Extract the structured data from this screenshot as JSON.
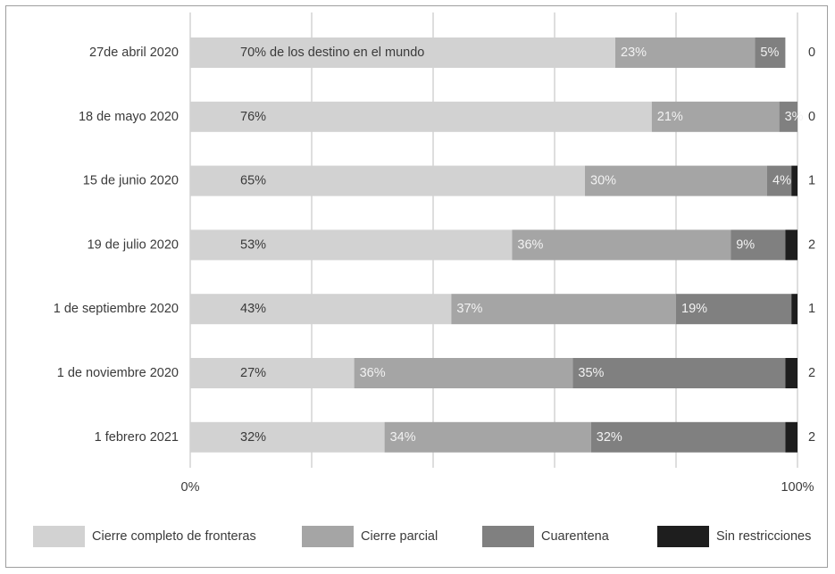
{
  "chart_data": {
    "type": "bar",
    "orientation": "horizontal",
    "stacked": true,
    "categories": [
      "27de abril 2020",
      "18 de mayo 2020",
      "15 de junio 2020",
      "19 de julio 2020",
      "1 de septiembre 2020",
      "1 de noviembre 2020",
      "1 febrero 2021"
    ],
    "series": [
      {
        "name": "Cierre completo de fronteras",
        "color": "#d2d2d2",
        "text_color": "#3a3a3a",
        "values": [
          70,
          76,
          65,
          53,
          43,
          27,
          32
        ],
        "labels": [
          "70% de los destino en el mundo",
          "76%",
          "65%",
          "53%",
          "43%",
          "27%",
          "32%"
        ]
      },
      {
        "name": "Cierre parcial",
        "color": "#a5a5a5",
        "text_color": "#f2f2f2",
        "values": [
          23,
          21,
          30,
          36,
          37,
          36,
          34
        ],
        "labels": [
          "23%",
          "21%",
          "30%",
          "36%",
          "37%",
          "36%",
          "34%"
        ]
      },
      {
        "name": "Cuarentena",
        "color": "#808080",
        "text_color": "#f2f2f2",
        "values": [
          5,
          3,
          4,
          9,
          19,
          35,
          32
        ],
        "labels": [
          "5%",
          "3%",
          "4%",
          "9%",
          "19%",
          "35%",
          "32%"
        ]
      },
      {
        "name": "Sin restricciones",
        "color": "#1e1e1e",
        "text_color": "#ffffff",
        "values": [
          0,
          0,
          1,
          2,
          1,
          2,
          2
        ],
        "labels": [
          "",
          "",
          "",
          "",
          "",
          "",
          ""
        ]
      }
    ],
    "right_labels": [
      "0",
      "0",
      "1",
      "2",
      "1",
      "2",
      "2"
    ],
    "x_ticks": [
      "0%",
      "100%"
    ],
    "xlim": [
      0,
      100
    ],
    "grid": true,
    "legend_position": "bottom"
  }
}
